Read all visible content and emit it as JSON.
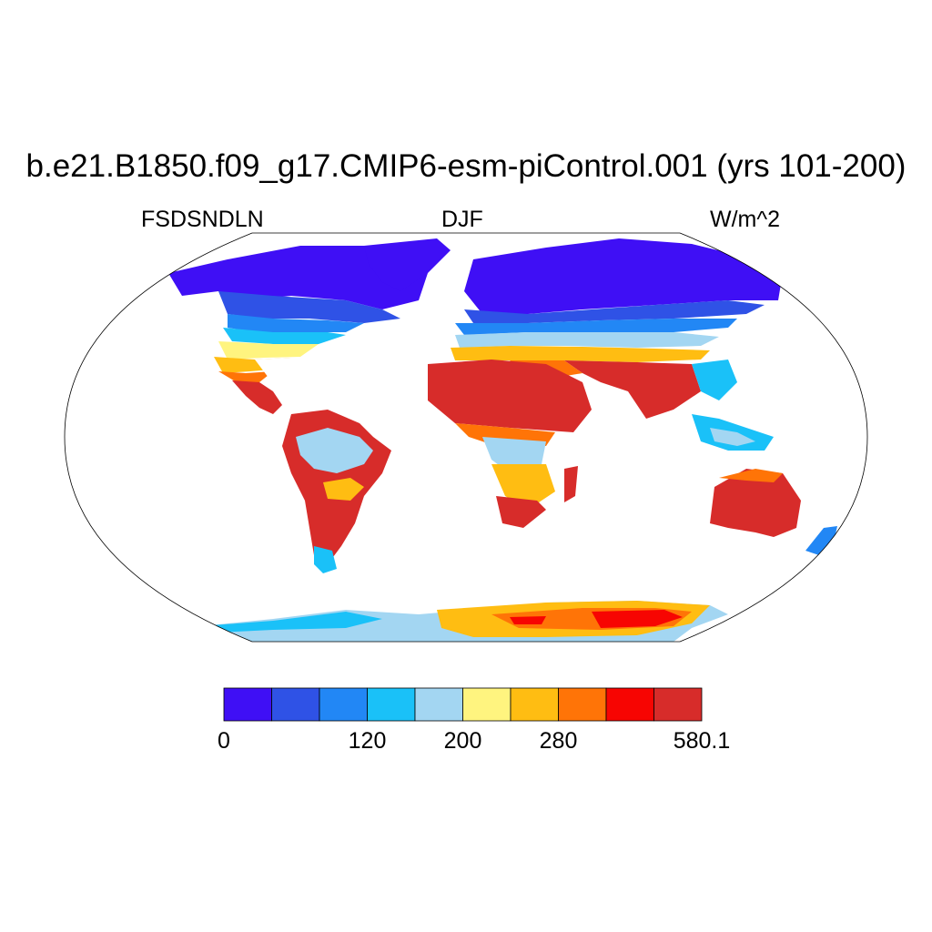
{
  "title": "b.e21.B1850.f09_g17.CMIP6-esm-piControl.001 (yrs 101-200)",
  "left_string": "FSDSNDLN",
  "center_string": "DJF",
  "right_string": "W/m^2",
  "colorbar": {
    "colors": [
      "#3f0ff5",
      "#2f52e6",
      "#2287f5",
      "#1ac1f8",
      "#a3d6f2",
      "#fff47f",
      "#ffbd12",
      "#ff7407",
      "#f70502",
      "#d72c2a"
    ],
    "labels": [
      {
        "text": "0",
        "index": 0
      },
      {
        "text": "120",
        "index": 3
      },
      {
        "text": "200",
        "index": 5
      },
      {
        "text": "280",
        "index": 7
      },
      {
        "text": "580.1",
        "index": 10
      }
    ]
  }
}
